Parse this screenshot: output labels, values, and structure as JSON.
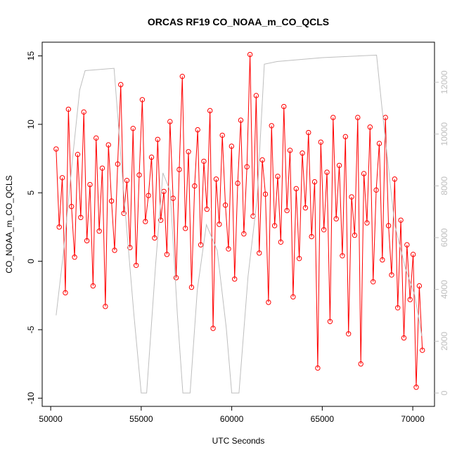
{
  "chart_data": {
    "type": "line",
    "title": "ORCAS RF19 CO_NOAA_m_CO_QCLS",
    "x_label": "UTC Seconds",
    "y_label": "CO_NOAA_m_CO_QCLS",
    "xlim": [
      49530,
      71200
    ],
    "xticks": [
      50000,
      55000,
      60000,
      65000,
      70000
    ],
    "ylim": [
      -10.6,
      16
    ],
    "yticks": [
      -10,
      -5,
      0,
      5,
      10,
      15
    ],
    "y2lim": [
      -516,
      13548
    ],
    "y2ticks": [
      0,
      2000,
      4000,
      6000,
      8000,
      10000,
      12000
    ],
    "series": [
      {
        "color": "#ff0000",
        "markers": true,
        "x": [
          50300,
          50470,
          50640,
          50810,
          50980,
          51150,
          51320,
          51490,
          51660,
          51830,
          52000,
          52170,
          52340,
          52510,
          52680,
          52850,
          53020,
          53190,
          53360,
          53530,
          53700,
          53870,
          54040,
          54210,
          54380,
          54550,
          54720,
          54890,
          55060,
          55230,
          55400,
          55570,
          55740,
          55910,
          56080,
          56250,
          56420,
          56590,
          56760,
          56930,
          57100,
          57270,
          57440,
          57610,
          57780,
          57950,
          58120,
          58290,
          58460,
          58630,
          58800,
          58970,
          59140,
          59310,
          59480,
          59650,
          59820,
          59990,
          60160,
          60330,
          60500,
          60670,
          60840,
          61010,
          61180,
          61350,
          61520,
          61690,
          61860,
          62030,
          62200,
          62370,
          62540,
          62710,
          62880,
          63050,
          63220,
          63390,
          63560,
          63730,
          63900,
          64070,
          64240,
          64410,
          64580,
          64750,
          64920,
          65090,
          65260,
          65430,
          65600,
          65770,
          65940,
          66110,
          66280,
          66450,
          66620,
          66790,
          66960,
          67130,
          67300,
          67470,
          67640,
          67810,
          67980,
          68150,
          68320,
          68490,
          68660,
          68830,
          69000,
          69170,
          69340,
          69510,
          69680,
          69850,
          70020,
          70190,
          70360,
          70530
        ],
        "values": [
          8.2,
          2.5,
          6.1,
          -2.3,
          11.1,
          4.0,
          0.3,
          7.8,
          3.2,
          10.9,
          1.5,
          5.6,
          -1.8,
          9.0,
          2.2,
          6.8,
          -3.3,
          8.5,
          4.4,
          0.8,
          7.1,
          12.9,
          3.5,
          5.9,
          1.0,
          9.7,
          -0.3,
          6.3,
          11.8,
          2.9,
          4.8,
          7.6,
          1.7,
          8.9,
          3.0,
          5.1,
          0.5,
          10.2,
          4.6,
          -1.2,
          6.7,
          13.5,
          2.4,
          8.0,
          -1.9,
          5.5,
          9.6,
          1.2,
          7.3,
          3.8,
          11.0,
          -4.9,
          6.0,
          2.7,
          9.2,
          4.1,
          0.9,
          8.4,
          -1.3,
          5.7,
          10.3,
          2.0,
          6.9,
          15.1,
          3.3,
          12.1,
          0.6,
          7.4,
          4.9,
          -3.0,
          9.9,
          2.6,
          6.2,
          1.4,
          11.3,
          3.7,
          8.1,
          -2.6,
          5.3,
          0.2,
          7.9,
          3.9,
          9.4,
          1.8,
          5.8,
          -7.8,
          8.7,
          2.3,
          6.5,
          -4.4,
          10.5,
          3.1,
          7.0,
          0.4,
          9.1,
          -5.3,
          4.7,
          1.9,
          10.5,
          -7.5,
          6.4,
          2.8,
          9.8,
          -1.5,
          5.2,
          8.6,
          0.1,
          10.5,
          2.6,
          -1.0,
          6.0,
          -3.4,
          3.0,
          -5.6,
          1.2,
          -2.8,
          0.5,
          -9.2,
          -1.8,
          -6.5
        ]
      },
      {
        "color": "#bebebe",
        "axis": "y2",
        "markers": false,
        "x": [
          50300,
          50700,
          51200,
          51600,
          51900,
          53500,
          54000,
          54600,
          55000,
          55300,
          55800,
          56200,
          56600,
          57000,
          57300,
          57700,
          58100,
          58600,
          59200,
          59700,
          60000,
          60400,
          60900,
          61400,
          61800,
          62500,
          65000,
          68000,
          68300,
          69000,
          69600,
          70100,
          70500
        ],
        "values": [
          3000,
          5400,
          9000,
          11700,
          12450,
          12540,
          8000,
          3000,
          0,
          0,
          5000,
          8500,
          7800,
          3000,
          0,
          0,
          4000,
          6500,
          5500,
          2500,
          0,
          0,
          4500,
          7500,
          12700,
          12800,
          12950,
          13050,
          11000,
          6500,
          4800,
          3800,
          2200
        ]
      }
    ]
  }
}
